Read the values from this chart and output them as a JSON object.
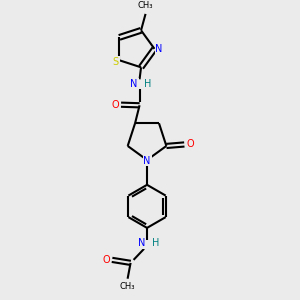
{
  "bg_color": "#ebebeb",
  "atom_colors": {
    "C": "#000000",
    "N": "#0000ff",
    "O": "#ff0000",
    "S": "#cccc00",
    "H": "#008080"
  },
  "line_color": "#000000",
  "line_width": 1.5,
  "font_size": 7.0
}
